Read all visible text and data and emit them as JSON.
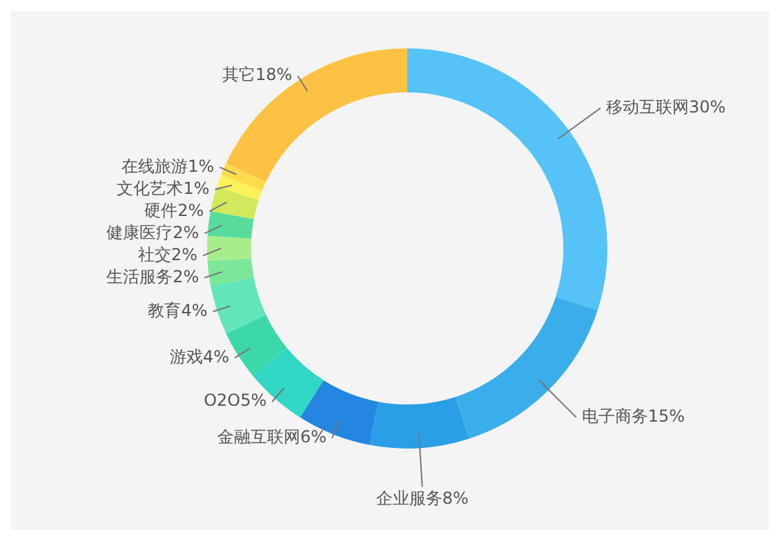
{
  "chart_data": {
    "type": "donut",
    "categories": [
      "移动互联网",
      "电子商务",
      "企业服务",
      "金融互联网",
      "O2O",
      "游戏",
      "教育",
      "生活服务",
      "社交",
      "健康医疗",
      "硬件",
      "文化艺术",
      "在线旅游",
      "其它"
    ],
    "values": [
      30,
      15,
      8,
      6,
      5,
      4,
      4,
      2,
      2,
      2,
      2,
      1,
      1,
      18
    ],
    "value_labels": [
      "30%",
      "15%",
      "8%",
      "6%",
      "5%",
      "4%",
      "4%",
      "2%",
      "2%",
      "2%",
      "2%",
      "1%",
      "1%",
      "18%"
    ],
    "colors": [
      "#55c3f8",
      "#3aaeea",
      "#2a9ee6",
      "#2486e0",
      "#2fd7c4",
      "#3cd8aa",
      "#62e6bc",
      "#7ae898",
      "#a8ed8c",
      "#58dc9c",
      "#d3e85a",
      "#fbf25a",
      "#fcdc4c",
      "#fdc244"
    ],
    "data_labels": true,
    "legend": false
  }
}
